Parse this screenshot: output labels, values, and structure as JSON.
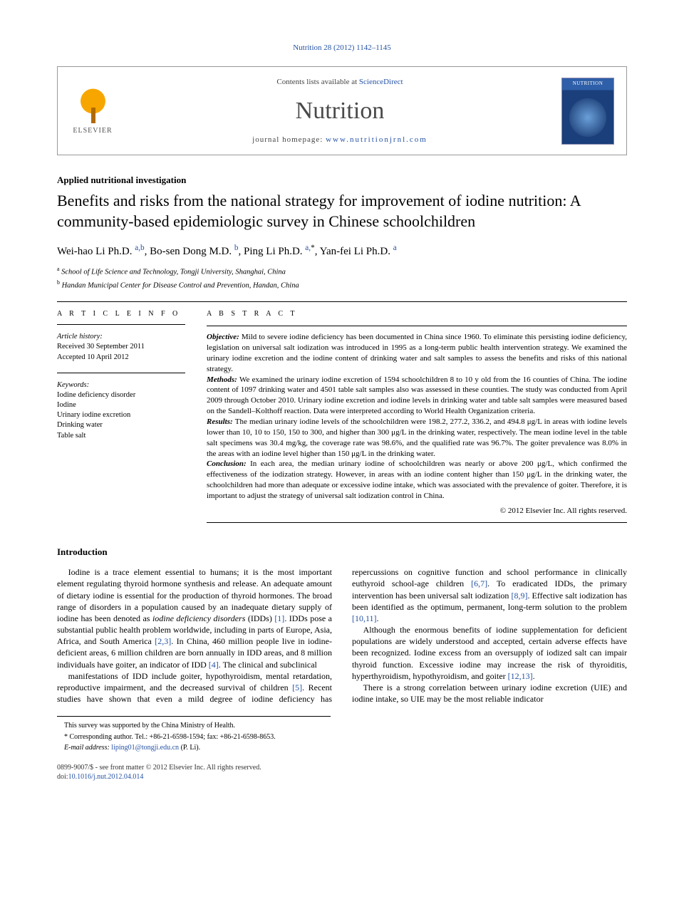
{
  "running_head": "Nutrition 28 (2012) 1142–1145",
  "masthead": {
    "contents_prefix": "Contents lists available at ",
    "contents_link": "ScienceDirect",
    "journal": "Nutrition",
    "homepage_prefix": "journal homepage: ",
    "homepage_url": "www.nutritionjrnl.com",
    "publisher": "ELSEVIER"
  },
  "article_type": "Applied nutritional investigation",
  "title": "Benefits and risks from the national strategy for improvement of iodine nutrition: A community-based epidemiologic survey in Chinese schoolchildren",
  "authors_html": "Wei-hao Li Ph.D. <a href='#'><sup>a,b</sup></a>, Bo-sen Dong M.D. <a href='#'><sup>b</sup></a>, Ping Li Ph.D. <a href='#'><sup>a,</sup></a><sup>*</sup>, Yan-fei Li Ph.D. <a href='#'><sup>a</sup></a>",
  "affiliations": {
    "a": "School of Life Science and Technology, Tongji University, Shanghai, China",
    "b": "Handan Municipal Center for Disease Control and Prevention, Handan, China"
  },
  "article_info": {
    "heading": "A R T I C L E  I N F O",
    "history_label": "Article history:",
    "received": "Received 30 September 2011",
    "accepted": "Accepted 10 April 2012",
    "keywords_label": "Keywords:",
    "keywords": [
      "Iodine deficiency disorder",
      "Iodine",
      "Urinary iodine excretion",
      "Drinking water",
      "Table salt"
    ]
  },
  "abstract": {
    "heading": "A B S T R A C T",
    "objective": "Mild to severe iodine deficiency has been documented in China since 1960. To eliminate this persisting iodine deficiency, legislation on universal salt iodization was introduced in 1995 as a long-term public health intervention strategy. We examined the urinary iodine excretion and the iodine content of drinking water and salt samples to assess the benefits and risks of this national strategy.",
    "methods": "We examined the urinary iodine excretion of 1594 schoolchildren 8 to 10 y old from the 16 counties of China. The iodine content of 1097 drinking water and 4501 table salt samples also was assessed in these counties. The study was conducted from April 2009 through October 2010. Urinary iodine excretion and iodine levels in drinking water and table salt samples were measured based on the Sandell–Kolthoff reaction. Data were interpreted according to World Health Organization criteria.",
    "results": "The median urinary iodine levels of the schoolchildren were 198.2, 277.2, 336.2, and 494.8 μg/L in areas with iodine levels lower than 10, 10 to 150, 150 to 300, and higher than 300 μg/L in the drinking water, respectively. The mean iodine level in the table salt specimens was 30.4 mg/kg, the coverage rate was 98.6%, and the qualified rate was 96.7%. The goiter prevalence was 8.0% in the areas with an iodine level higher than 150 μg/L in the drinking water.",
    "conclusion": "In each area, the median urinary iodine of schoolchildren was nearly or above 200 μg/L, which confirmed the effectiveness of the iodization strategy. However, in areas with an iodine content higher than 150 μg/L in the drinking water, the schoolchildren had more than adequate or excessive iodine intake, which was associated with the prevalence of goiter. Therefore, it is important to adjust the strategy of universal salt iodization control in China.",
    "copyright": "© 2012 Elsevier Inc. All rights reserved."
  },
  "intro": {
    "heading": "Introduction",
    "p1": "Iodine is a trace element essential to humans; it is the most important element regulating thyroid hormone synthesis and release. An adequate amount of dietary iodine is essential for the production of thyroid hormones. The broad range of disorders in a population caused by an inadequate dietary supply of iodine has been denoted as iodine deficiency disorders (IDDs) [1]. IDDs pose a substantial public health problem worldwide, including in parts of Europe, Asia, Africa, and South America [2,3]. In China, 460 million people live in iodine-deficient areas, 6 million children are born annually in IDD areas, and 8 million individuals have goiter, an indicator of IDD [4]. The clinical and subclinical",
    "p2": "manifestations of IDD include goiter, hypothyroidism, mental retardation, reproductive impairment, and the decreased survival of children [5]. Recent studies have shown that even a mild degree of iodine deficiency has repercussions on cognitive function and school performance in clinically euthyroid school-age children [6,7]. To eradicated IDDs, the primary intervention has been universal salt iodization [8,9]. Effective salt iodization has been identified as the optimum, permanent, long-term solution to the problem [10,11].",
    "p3": "Although the enormous benefits of iodine supplementation for deficient populations are widely understood and accepted, certain adverse effects have been recognized. Iodine excess from an oversupply of iodized salt can impair thyroid function. Excessive iodine may increase the risk of thyroiditis, hyperthyroidism, hypothyroidism, and goiter [12,13].",
    "p4": "There is a strong correlation between urinary iodine excretion (UIE) and iodine intake, so UIE may be the most reliable indicator"
  },
  "footnotes": {
    "support": "This survey was supported by the China Ministry of Health.",
    "corresponding": "Corresponding author. Tel.: +86-21-6598-1594; fax: +86-21-6598-8653.",
    "email_label": "E-mail address: ",
    "email": "liping01@tongji.edu.cn",
    "email_suffix": " (P. Li)."
  },
  "footer": {
    "line1": "0899-9007/$ - see front matter © 2012 Elsevier Inc. All rights reserved.",
    "doi_label": "doi:",
    "doi": "10.1016/j.nut.2012.04.014"
  }
}
